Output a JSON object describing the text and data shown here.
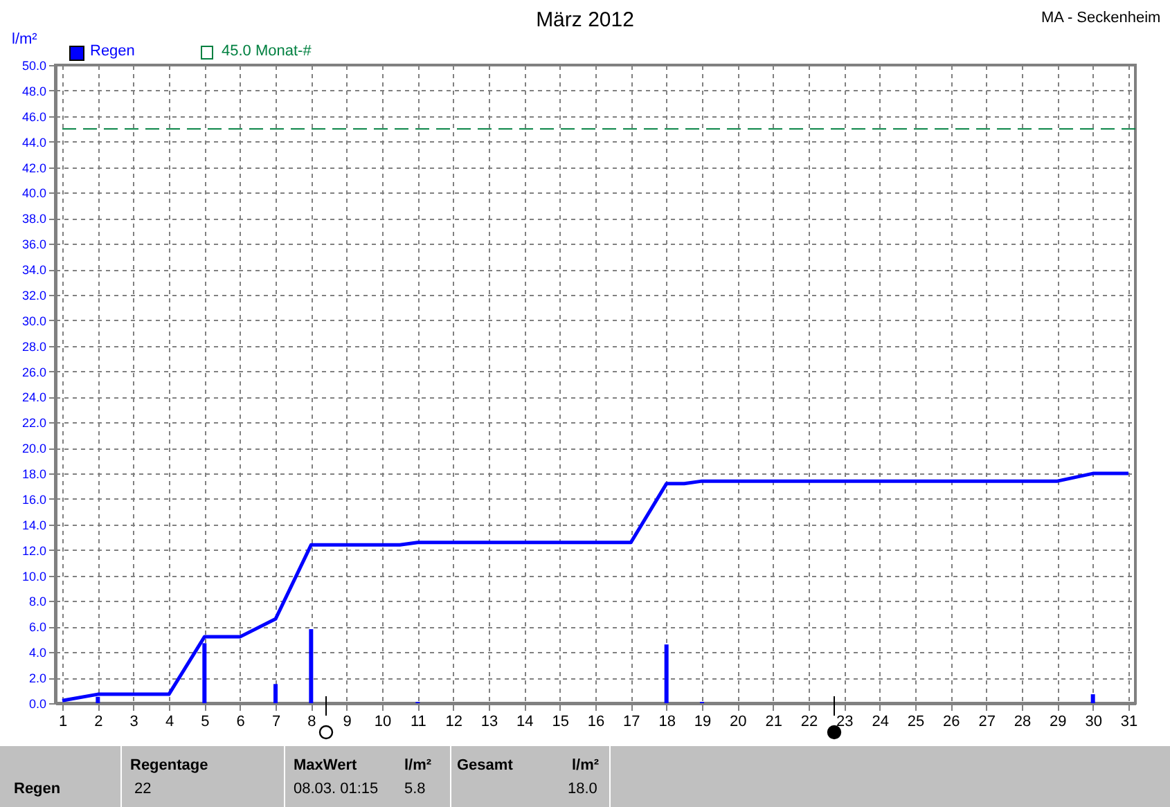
{
  "chart_data": {
    "type": "bar",
    "title": "März 2012",
    "ylabel": "l/m²",
    "annotations": [
      "MA - Seckenheim",
      "Regen",
      "Regentage",
      "22",
      "MaxWert",
      "l/m²",
      "08.03.  01:15",
      "5.8",
      "Gesamt",
      "l/m²",
      "18.0"
    ],
    "xlim": [
      1,
      31
    ],
    "xticks": [
      1,
      2,
      3,
      4,
      5,
      6,
      7,
      8,
      9,
      10,
      11,
      12,
      13,
      14,
      15,
      16,
      17,
      18,
      19,
      20,
      21,
      22,
      23,
      24,
      25,
      26,
      27,
      28,
      29,
      30,
      31
    ],
    "ylim": [
      0,
      50
    ],
    "yticks": [
      {
        "value": 0,
        "label": "0.0"
      },
      {
        "value": 2,
        "label": "2.0"
      },
      {
        "value": 4,
        "label": "4.0"
      },
      {
        "value": 6,
        "label": "6.0"
      },
      {
        "value": 8,
        "label": "8.0"
      },
      {
        "value": 10,
        "label": "10.0"
      },
      {
        "value": 12,
        "label": "12.0"
      },
      {
        "value": 14,
        "label": "14.0"
      },
      {
        "value": 16,
        "label": "16.0"
      },
      {
        "value": 18,
        "label": "18.0"
      },
      {
        "value": 20,
        "label": "20.0"
      },
      {
        "value": 22,
        "label": "22.0"
      },
      {
        "value": 24,
        "label": "24.0"
      },
      {
        "value": 26,
        "label": "26.0"
      },
      {
        "value": 28,
        "label": "28.0"
      },
      {
        "value": 30,
        "label": "30.0"
      },
      {
        "value": 32,
        "label": "32.0"
      },
      {
        "value": 34,
        "label": "34.0"
      },
      {
        "value": 36,
        "label": "36.0"
      },
      {
        "value": 38,
        "label": "38.0"
      },
      {
        "value": 40,
        "label": "40.0"
      },
      {
        "value": 42,
        "label": "42.0"
      },
      {
        "value": 44,
        "label": "44.0"
      },
      {
        "value": 46,
        "label": "46.0"
      },
      {
        "value": 48,
        "label": "48.0"
      },
      {
        "value": 50,
        "label": "50.0"
      }
    ],
    "series": [
      {
        "name": "Regen",
        "color": "#0000ff",
        "x": [
          2,
          5,
          7,
          8,
          11,
          18,
          19,
          30
        ],
        "values": [
          0.5,
          4.7,
          1.5,
          5.8,
          0.1,
          4.6,
          0.1,
          0.7
        ]
      },
      {
        "type": "line",
        "color": "#0000ff",
        "x": [
          1,
          2,
          4,
          5,
          6,
          7,
          8,
          10.5,
          11,
          17,
          18,
          18.5,
          19,
          29,
          30,
          31
        ],
        "values": [
          0.2,
          0.7,
          0.7,
          5.2,
          5.2,
          6.6,
          12.4,
          12.4,
          12.6,
          12.6,
          17.2,
          17.2,
          17.4,
          17.4,
          18.0,
          18.0
        ]
      }
    ],
    "ref_lines": [
      {
        "axis": "y",
        "value": 45,
        "label": "45.0 Monat-#",
        "color": "#008040",
        "line_style": "dashed"
      }
    ],
    "grid": true,
    "legend": "top left",
    "line_style": "solid"
  }
}
